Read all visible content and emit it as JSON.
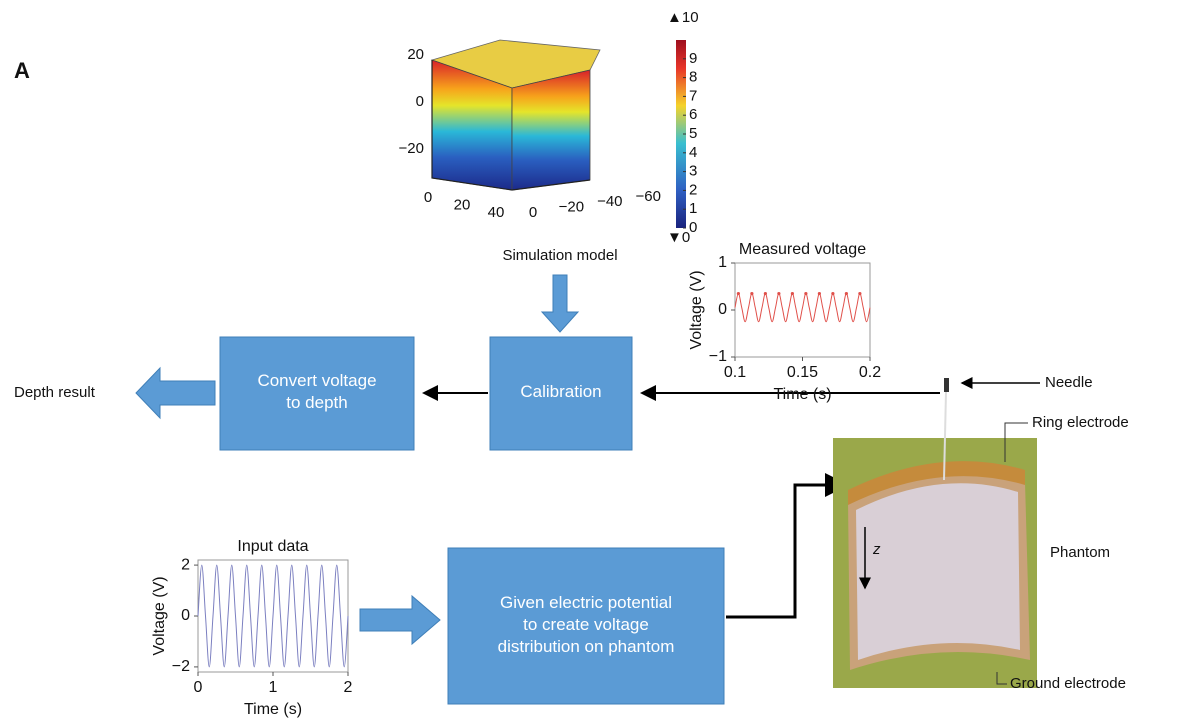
{
  "panel_label": "A",
  "simulation": {
    "caption": "Simulation model",
    "vertical_ticks": [
      20,
      0,
      {
        "value": -20,
        "label": "−20"
      }
    ],
    "depth_ticks": [
      0,
      20,
      40
    ],
    "width_ticks": [
      0,
      {
        "value": -20,
        "label": "−20"
      },
      {
        "value": -40,
        "label": "−40"
      },
      {
        "value": -60,
        "label": "−60"
      }
    ],
    "colorbar": {
      "clim": [
        0,
        10
      ],
      "ticks": [
        0,
        1,
        2,
        3,
        4,
        5,
        6,
        7,
        8,
        9
      ],
      "ends": [
        {
          "value": 10,
          "label": "▲10"
        },
        {
          "value": 0,
          "label": "▼0"
        }
      ]
    }
  },
  "boxes": {
    "calibration": "Calibration",
    "convert": "Convert voltage\nto depth",
    "potential": "Given electric potential\nto create voltage\ndistribution on phantom"
  },
  "depth_result": "Depth result",
  "photo_labels": {
    "needle": "Needle",
    "ring": "Ring electrode",
    "phantom": "Phantom",
    "ground": "Ground electrode",
    "z": "z"
  },
  "chart_data": [
    {
      "type": "line",
      "title": "Measured voltage",
      "x_label": "Time (s)",
      "y_label": "Voltage (V)",
      "color": "#e0504a",
      "peak_markers": true,
      "x": [
        0.1,
        0.1025,
        0.105,
        0.1075,
        0.11,
        0.1125,
        0.115,
        0.1175,
        0.12,
        0.1225,
        0.125,
        0.1275,
        0.13,
        0.1325,
        0.135,
        0.1375,
        0.14,
        0.1425,
        0.145,
        0.1475,
        0.15,
        0.1525,
        0.155,
        0.1575,
        0.16,
        0.1625,
        0.165,
        0.1675,
        0.17,
        0.1725,
        0.175,
        0.1775,
        0.18,
        0.1825,
        0.185,
        0.1875,
        0.19,
        0.1925,
        0.195,
        0.1975,
        0.2
      ],
      "values": [
        0.05,
        0.35,
        0.05,
        -0.25,
        0.05,
        0.35,
        0.05,
        -0.25,
        0.05,
        0.35,
        0.05,
        -0.25,
        0.05,
        0.35,
        0.05,
        -0.25,
        0.05,
        0.35,
        0.05,
        -0.25,
        0.05,
        0.35,
        0.05,
        -0.25,
        0.05,
        0.35,
        0.05,
        -0.25,
        0.05,
        0.35,
        0.05,
        -0.25,
        0.05,
        0.35,
        0.05,
        -0.25,
        0.05,
        0.35,
        0.05,
        -0.25,
        0.05
      ],
      "xlim": [
        0.1,
        0.2
      ],
      "ylim": [
        -1,
        1
      ],
      "xticks": [
        0.1,
        0.15,
        0.2
      ],
      "yticks": [
        {
          "value": -1,
          "label": "−1"
        },
        0,
        1
      ]
    },
    {
      "type": "line",
      "title": "Input data",
      "x_label": "Time (s)",
      "y_label": "Voltage (V)",
      "color": "#7b7fc0",
      "peak_markers": false,
      "x": [
        0,
        0.05,
        0.1,
        0.15,
        0.2,
        0.25,
        0.3,
        0.35,
        0.4,
        0.45,
        0.5,
        0.55,
        0.6,
        0.65,
        0.7,
        0.75,
        0.8,
        0.85,
        0.9,
        0.95,
        1,
        1.05,
        1.1,
        1.15,
        1.2,
        1.25,
        1.3,
        1.35,
        1.4,
        1.45,
        1.5,
        1.55,
        1.6,
        1.65,
        1.7,
        1.75,
        1.8,
        1.85,
        1.9,
        1.95,
        2
      ],
      "values": [
        0,
        2,
        0,
        -2,
        0,
        2,
        0,
        -2,
        0,
        2,
        0,
        -2,
        0,
        2,
        0,
        -2,
        0,
        2,
        0,
        -2,
        0,
        2,
        0,
        -2,
        0,
        2,
        0,
        -2,
        0,
        2,
        0,
        -2,
        0,
        2,
        0,
        -2,
        0,
        2,
        0,
        -2,
        0
      ],
      "xlim": [
        0,
        2
      ],
      "ylim": [
        -2.2,
        2.2
      ],
      "xticks": [
        0,
        1,
        2
      ],
      "yticks": [
        {
          "value": -2,
          "label": "−2"
        },
        0,
        2
      ]
    }
  ]
}
